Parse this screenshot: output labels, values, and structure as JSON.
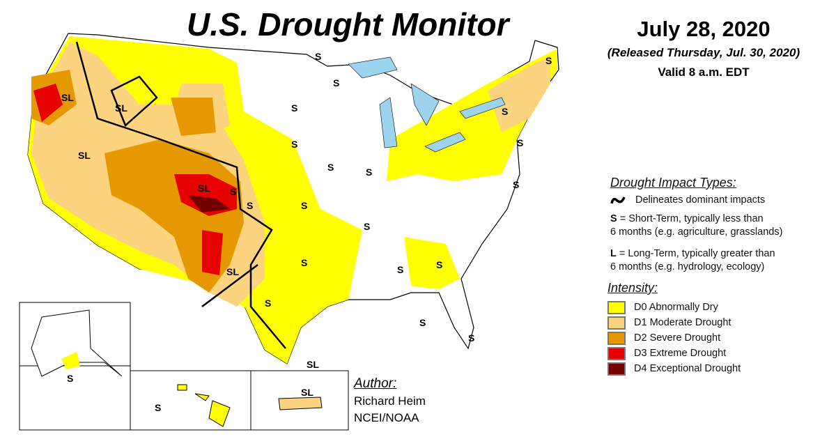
{
  "header": {
    "title": "U.S. Drought Monitor",
    "date": "July 28, 2020",
    "released": "(Released Thursday, Jul. 30, 2020)",
    "valid": "Valid 8 a.m. EDT"
  },
  "legend": {
    "impact_heading": "Drought Impact Types:",
    "delineates": "Delineates dominant impacts",
    "s_key": "S",
    "s_text": " = Short-Term, typically less than",
    "s_text2": "6 months (e.g. agriculture, grasslands)",
    "l_key": "L",
    "l_text": " = Long-Term, typically greater than",
    "l_text2": "6 months (e.g. hydrology, ecology)",
    "intensity_heading": "Intensity:",
    "categories": [
      {
        "label": "D0 Abnormally Dry",
        "color": "#FFFF00"
      },
      {
        "label": "D1 Moderate Drought",
        "color": "#FCD37F"
      },
      {
        "label": "D2 Severe Drought",
        "color": "#E69800"
      },
      {
        "label": "D3 Extreme Drought",
        "color": "#E60000"
      },
      {
        "label": "D4 Exceptional Drought",
        "color": "#730000"
      }
    ]
  },
  "map_labels": [
    "SL",
    "SL",
    "SL",
    "SL",
    "SL",
    "SL",
    "S",
    "S",
    "S",
    "S",
    "S",
    "S",
    "S",
    "S",
    "S",
    "S",
    "S",
    "S",
    "S",
    "S",
    "S",
    "S",
    "S",
    "S",
    "S",
    "S",
    "S",
    "S",
    "SL"
  ],
  "author": {
    "heading": "Author:",
    "name": "Richard Heim",
    "org": "NCEI/NOAA"
  },
  "colors": {
    "water": "#9cd3ee",
    "river": "#3b9ad9",
    "border": "#000"
  }
}
